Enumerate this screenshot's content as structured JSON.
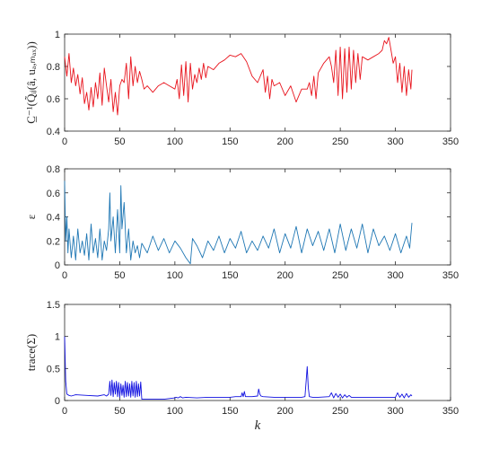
{
  "chart_data": [
    {
      "type": "line",
      "ylabel": "C̲⁻¹(Q̃ᵢⱼ(â, uₐ,ₘₐₓ))",
      "xlabel": "",
      "xlim": [
        0,
        350
      ],
      "ylim": [
        0.4,
        1
      ],
      "xticks": [
        "0",
        "50",
        "100",
        "150",
        "200",
        "250",
        "300",
        "350"
      ],
      "yticks": [
        "0.4",
        "0.6",
        "0.8",
        "1"
      ],
      "grid": false,
      "series": [
        {
          "color": "#e8131c",
          "x": [
            0,
            2,
            4,
            6,
            8,
            10,
            12,
            14,
            16,
            18,
            20,
            22,
            24,
            26,
            28,
            30,
            32,
            34,
            36,
            38,
            40,
            42,
            44,
            46,
            48,
            50,
            52,
            54,
            56,
            58,
            60,
            62,
            64,
            66,
            68,
            70,
            72,
            75,
            80,
            85,
            90,
            95,
            100,
            102,
            104,
            106,
            108,
            110,
            112,
            114,
            116,
            118,
            120,
            122,
            124,
            126,
            128,
            130,
            135,
            140,
            145,
            150,
            155,
            160,
            165,
            170,
            175,
            180,
            182,
            184,
            186,
            188,
            190,
            195,
            200,
            205,
            210,
            215,
            220,
            222,
            224,
            226,
            228,
            230,
            235,
            240,
            242,
            244,
            246,
            248,
            250,
            252,
            254,
            256,
            258,
            260,
            262,
            264,
            266,
            268,
            270,
            275,
            280,
            285,
            288,
            290,
            292,
            294,
            296,
            298,
            300,
            302,
            304,
            306,
            308,
            310,
            312,
            314,
            315
          ],
          "y": [
            0.86,
            0.74,
            0.88,
            0.7,
            0.79,
            0.68,
            0.75,
            0.63,
            0.73,
            0.57,
            0.64,
            0.53,
            0.67,
            0.55,
            0.7,
            0.6,
            0.76,
            0.56,
            0.79,
            0.68,
            0.58,
            0.72,
            0.52,
            0.64,
            0.5,
            0.68,
            0.72,
            0.7,
            0.82,
            0.6,
            0.86,
            0.68,
            0.8,
            0.7,
            0.77,
            0.72,
            0.66,
            0.68,
            0.64,
            0.68,
            0.7,
            0.68,
            0.66,
            0.72,
            0.6,
            0.81,
            0.62,
            0.83,
            0.58,
            0.82,
            0.66,
            0.75,
            0.7,
            0.79,
            0.72,
            0.82,
            0.73,
            0.8,
            0.78,
            0.82,
            0.84,
            0.87,
            0.86,
            0.88,
            0.83,
            0.74,
            0.7,
            0.78,
            0.64,
            0.74,
            0.6,
            0.72,
            0.68,
            0.7,
            0.62,
            0.68,
            0.58,
            0.66,
            0.66,
            0.7,
            0.62,
            0.74,
            0.6,
            0.76,
            0.82,
            0.86,
            0.8,
            0.7,
            0.9,
            0.62,
            0.92,
            0.6,
            0.91,
            0.64,
            0.92,
            0.66,
            0.9,
            0.7,
            0.88,
            0.72,
            0.86,
            0.84,
            0.86,
            0.88,
            0.9,
            0.96,
            0.94,
            0.98,
            0.9,
            0.82,
            0.86,
            0.7,
            0.82,
            0.64,
            0.8,
            0.62,
            0.78,
            0.66,
            0.78
          ]
        }
      ]
    },
    {
      "type": "line",
      "ylabel": "ε",
      "xlabel": "",
      "xlim": [
        0,
        350
      ],
      "ylim": [
        0,
        0.8
      ],
      "xticks": [
        "0",
        "50",
        "100",
        "150",
        "200",
        "250",
        "300",
        "350"
      ],
      "yticks": [
        "0",
        "0.2",
        "0.4",
        "0.6",
        "0.8"
      ],
      "grid": false,
      "series": [
        {
          "color": "#1f77b4",
          "x": [
            0,
            1,
            2,
            3,
            4,
            6,
            8,
            10,
            12,
            14,
            16,
            18,
            20,
            22,
            24,
            26,
            28,
            30,
            32,
            34,
            36,
            38,
            40,
            41,
            42,
            44,
            46,
            48,
            50,
            51,
            52,
            54,
            56,
            58,
            60,
            62,
            64,
            66,
            68,
            70,
            75,
            80,
            85,
            90,
            95,
            100,
            105,
            110,
            114,
            116,
            120,
            125,
            130,
            135,
            140,
            145,
            150,
            155,
            160,
            165,
            170,
            175,
            180,
            185,
            190,
            195,
            200,
            205,
            210,
            215,
            220,
            225,
            230,
            235,
            240,
            245,
            250,
            255,
            260,
            265,
            270,
            275,
            280,
            285,
            290,
            295,
            300,
            305,
            310,
            313,
            315
          ],
          "y": [
            0.7,
            0.2,
            0.4,
            0.1,
            0.3,
            0.06,
            0.24,
            0.04,
            0.3,
            0.1,
            0.2,
            0.08,
            0.26,
            0.04,
            0.34,
            0.1,
            0.22,
            0.06,
            0.3,
            0.04,
            0.2,
            0.12,
            0.3,
            0.6,
            0.2,
            0.4,
            0.1,
            0.46,
            0.1,
            0.66,
            0.3,
            0.52,
            0.1,
            0.3,
            0.04,
            0.2,
            0.1,
            0.16,
            0.06,
            0.18,
            0.1,
            0.24,
            0.12,
            0.22,
            0.1,
            0.2,
            0.14,
            0.06,
            0.01,
            0.22,
            0.16,
            0.06,
            0.2,
            0.12,
            0.24,
            0.1,
            0.22,
            0.14,
            0.28,
            0.1,
            0.2,
            0.12,
            0.24,
            0.14,
            0.3,
            0.1,
            0.26,
            0.14,
            0.32,
            0.1,
            0.3,
            0.16,
            0.28,
            0.12,
            0.3,
            0.1,
            0.34,
            0.12,
            0.3,
            0.14,
            0.34,
            0.1,
            0.3,
            0.16,
            0.24,
            0.12,
            0.26,
            0.1,
            0.24,
            0.14,
            0.35
          ]
        }
      ]
    },
    {
      "type": "line",
      "ylabel": "trace(Σ)",
      "xlabel": "k",
      "xlim": [
        0,
        350
      ],
      "ylim": [
        0,
        1.5
      ],
      "xticks": [
        "0",
        "50",
        "100",
        "150",
        "200",
        "250",
        "300",
        "350"
      ],
      "yticks": [
        "0",
        "0.5",
        "1",
        "1.5"
      ],
      "grid": false,
      "series": [
        {
          "color": "#1010e0",
          "x": [
            0,
            1,
            2,
            4,
            6,
            10,
            20,
            30,
            36,
            38,
            40,
            41,
            42,
            43,
            44,
            45,
            46,
            47,
            48,
            49,
            50,
            51,
            52,
            53,
            54,
            55,
            56,
            57,
            58,
            59,
            60,
            61,
            62,
            63,
            64,
            65,
            66,
            67,
            68,
            69,
            70,
            75,
            80,
            90,
            100,
            101,
            103,
            105,
            107,
            110,
            120,
            130,
            140,
            150,
            155,
            160,
            161,
            162,
            163,
            164,
            165,
            170,
            175,
            176,
            177,
            178,
            180,
            190,
            200,
            210,
            215,
            218,
            219,
            220,
            221,
            222,
            225,
            230,
            240,
            242,
            244,
            246,
            248,
            250,
            252,
            254,
            256,
            258,
            260,
            270,
            280,
            290,
            300,
            302,
            304,
            306,
            308,
            310,
            312,
            314,
            315
          ],
          "y": [
            1.0,
            0.3,
            0.1,
            0.08,
            0.07,
            0.09,
            0.08,
            0.07,
            0.09,
            0.07,
            0.1,
            0.3,
            0.08,
            0.32,
            0.06,
            0.28,
            0.1,
            0.3,
            0.06,
            0.28,
            0.05,
            0.26,
            0.08,
            0.24,
            0.05,
            0.3,
            0.06,
            0.28,
            0.07,
            0.26,
            0.05,
            0.3,
            0.07,
            0.28,
            0.05,
            0.3,
            0.06,
            0.26,
            0.07,
            0.29,
            0.02,
            0.02,
            0.02,
            0.02,
            0.04,
            0.05,
            0.04,
            0.06,
            0.04,
            0.05,
            0.04,
            0.05,
            0.05,
            0.05,
            0.06,
            0.06,
            0.12,
            0.06,
            0.14,
            0.06,
            0.06,
            0.06,
            0.07,
            0.18,
            0.1,
            0.07,
            0.06,
            0.05,
            0.05,
            0.05,
            0.05,
            0.06,
            0.3,
            0.53,
            0.2,
            0.06,
            0.05,
            0.05,
            0.06,
            0.12,
            0.04,
            0.11,
            0.05,
            0.1,
            0.04,
            0.09,
            0.05,
            0.08,
            0.05,
            0.05,
            0.05,
            0.05,
            0.05,
            0.12,
            0.05,
            0.1,
            0.04,
            0.11,
            0.05,
            0.09,
            0.07
          ]
        }
      ]
    }
  ]
}
